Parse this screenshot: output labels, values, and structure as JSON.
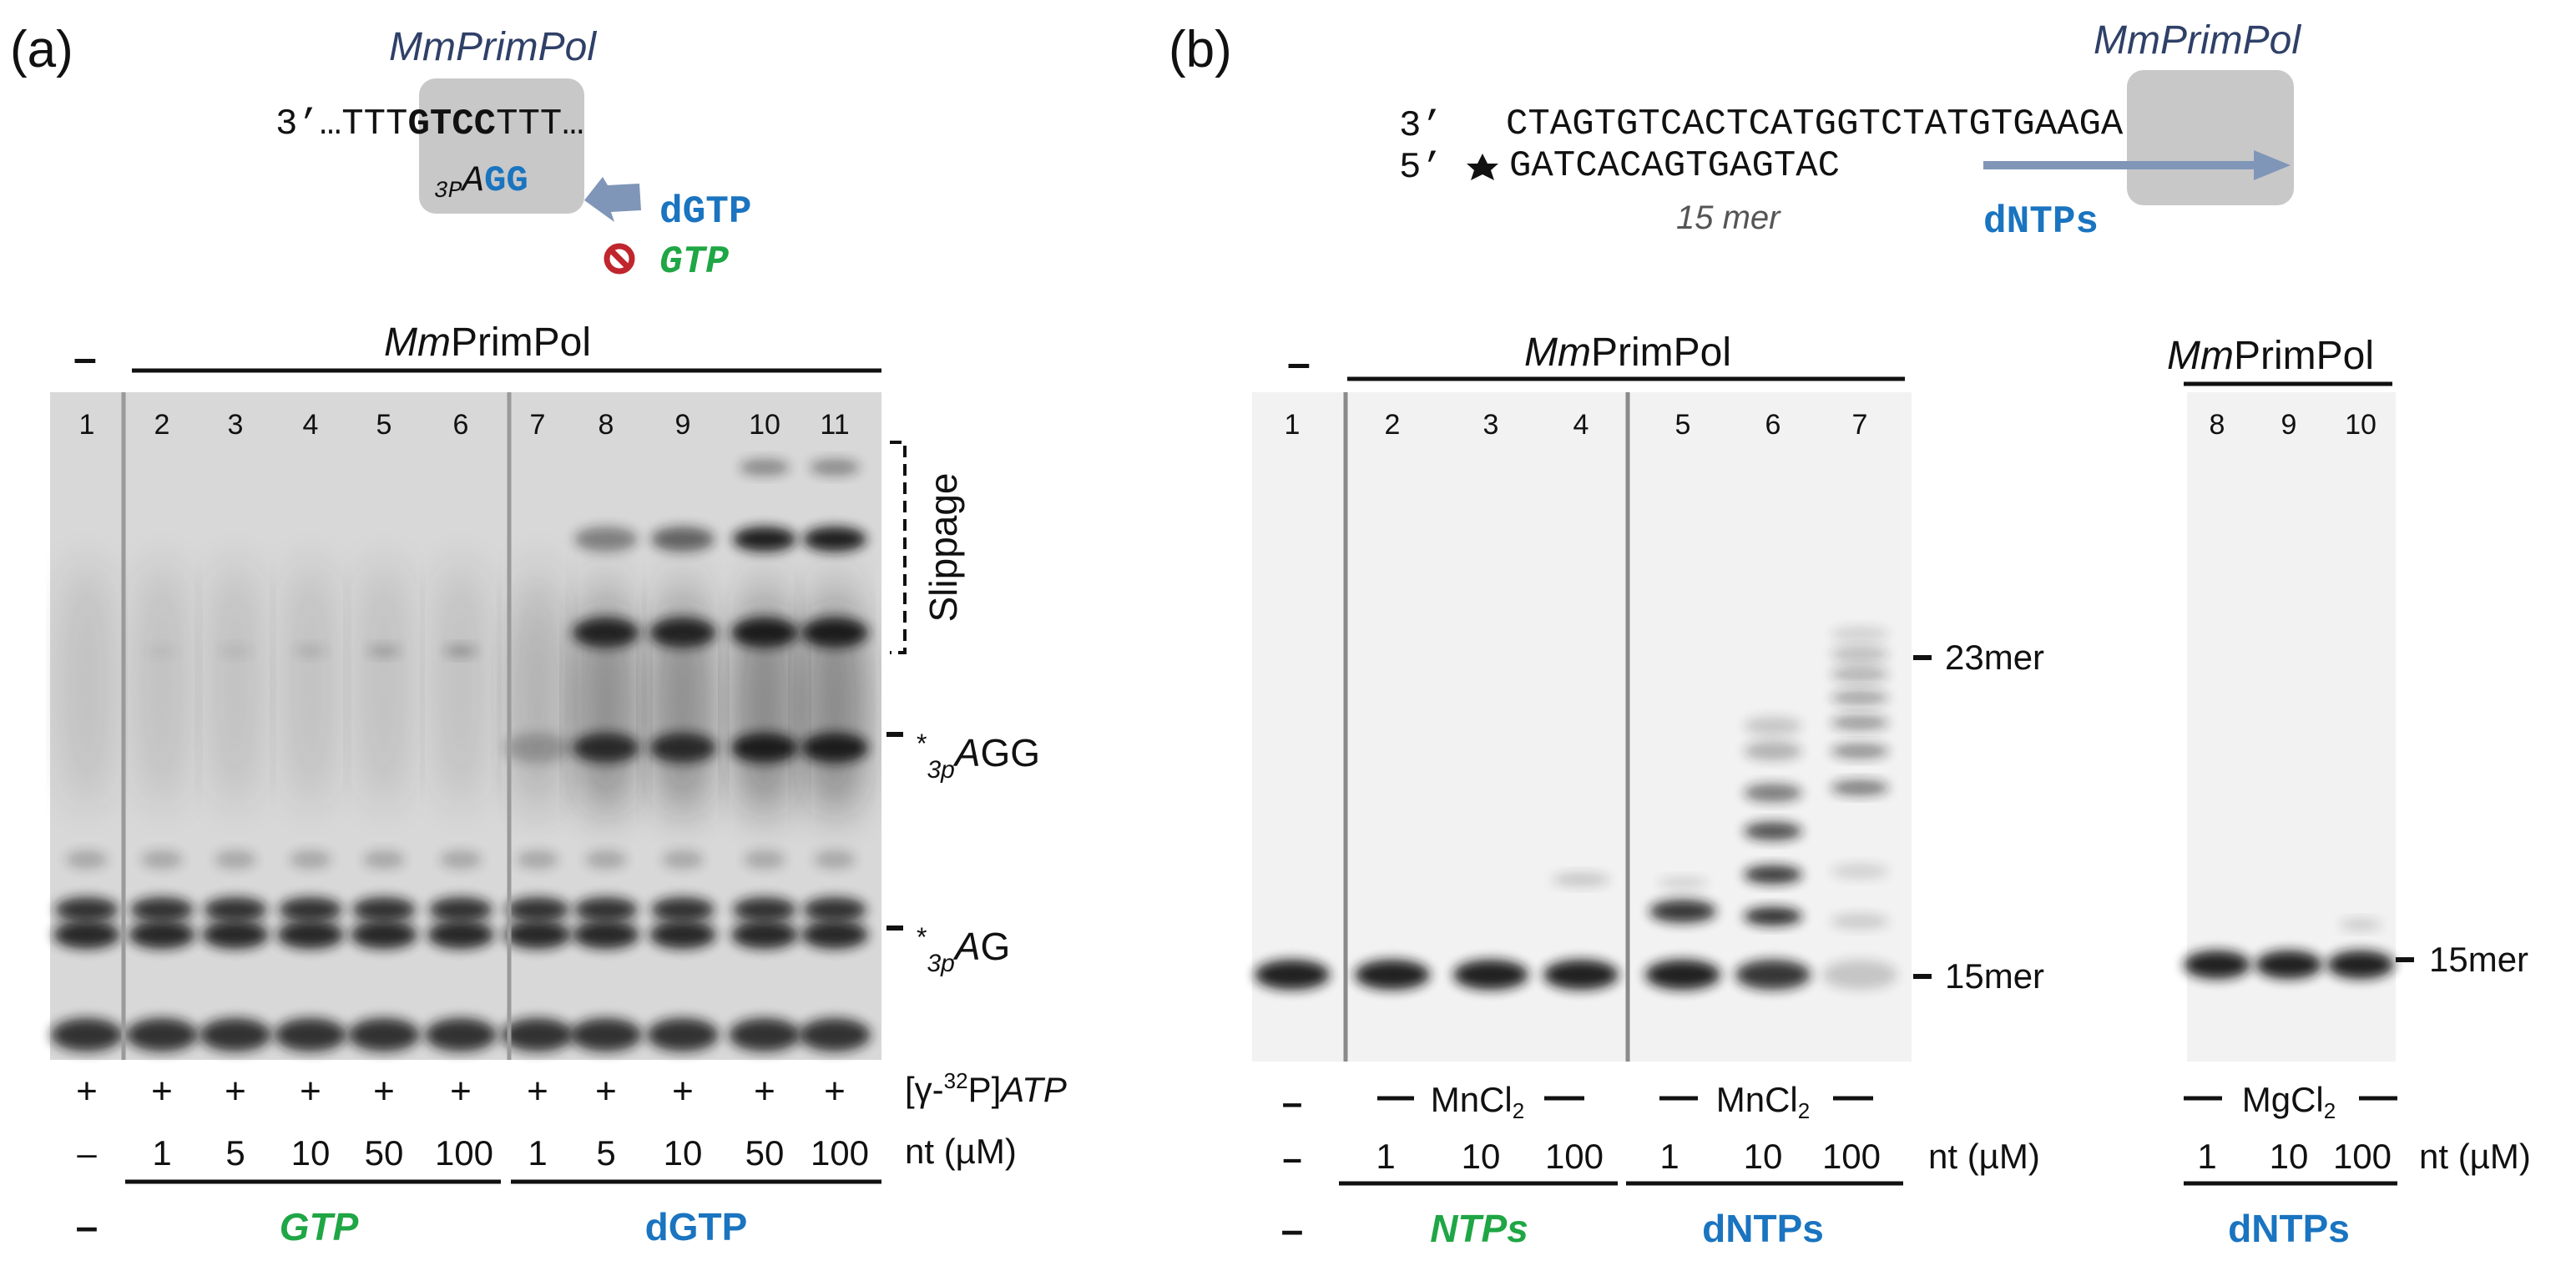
{
  "panel_a": {
    "label": "(a)",
    "enzyme_title": "MmPrimPol",
    "template_prefix": "3’…TTT",
    "template_bold": "GTCC",
    "template_suffix": "TTT…",
    "primer_sub": "3P",
    "primer_a": "A",
    "primer_gg": "GG",
    "incoming_ok": "dGTP",
    "incoming_blocked": "GTP",
    "minus": "–",
    "header_italic": "Mm",
    "header_plain": "PrimPol",
    "lane_numbers": [
      "1",
      "2",
      "3",
      "4",
      "5",
      "6",
      "7",
      "8",
      "9",
      "10",
      "11"
    ],
    "slippage_label": "Slippage",
    "band_aggg_sub": "3p",
    "band_aggg_italic": "A",
    "band_aggg_plain": "GG",
    "band_ag_sub": "3p",
    "band_ag_italic": "A",
    "band_ag_plain": "G",
    "star": "*",
    "atp_signs": [
      "+",
      "+",
      "+",
      "+",
      "+",
      "+",
      "+",
      "+",
      "+",
      "+",
      "+"
    ],
    "atp_label_open": "[γ-",
    "atp_label_sup": "32",
    "atp_label_close": "P]",
    "atp_label_italic": "ATP",
    "nt_values": [
      "–",
      "1",
      "5",
      "10",
      "50",
      "100",
      "1",
      "5",
      "10",
      "50",
      "100"
    ],
    "nt_label": "nt (µM)",
    "bottom_minus": "–",
    "group_gtp": "GTP",
    "group_dgtp": "dGTP"
  },
  "panel_b": {
    "label": "(b)",
    "enzyme_title": "MmPrimPol",
    "template_end": "3’",
    "template_seq": "CTAGTGTCACTCATGGTCTATGTGAAGA",
    "primer_end": "5’",
    "primer_seq": "GATCACAGTGAGTAC",
    "primer_length": "15 mer",
    "incoming": "dNTPs",
    "minus": "–",
    "header_italic": "Mm",
    "header_plain": "PrimPol",
    "lane_numbers": [
      "1",
      "2",
      "3",
      "4",
      "5",
      "6",
      "7"
    ],
    "lane_numbers_right": [
      "8",
      "9",
      "10"
    ],
    "marker_23": "23mer",
    "marker_15": "15mer",
    "marker_15_right": "15mer",
    "metal_mn": "MnCl",
    "metal_mg": "MgCl",
    "metal_sub": "2",
    "nt_values": [
      "–",
      "1",
      "10",
      "100",
      "1",
      "10",
      "100"
    ],
    "nt_values_right": [
      "1",
      "10",
      "100"
    ],
    "nt_label": "nt (µM)",
    "bottom_minus": "–",
    "group_ntps": "NTPs",
    "group_dntps": "dNTPs",
    "group_dntps_right": "dNTPs"
  },
  "colors": {
    "title_blue": "#2f4068",
    "dgtp_blue": "#1a74c0",
    "gtp_green": "#1fa645",
    "block_red": "#c0262d",
    "arrow_blue": "#7f96b8",
    "box_gray": "#c8c8c8",
    "gel_bg": "#dedede",
    "band_dark": "#141414"
  }
}
